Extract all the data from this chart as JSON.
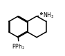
{
  "bg_color": "#ffffff",
  "line_color": "#000000",
  "lw": 1.1,
  "fig_w": 0.94,
  "fig_h": 0.82,
  "dpi": 100,
  "xlim": [
    0,
    10
  ],
  "ylim": [
    0,
    9
  ]
}
